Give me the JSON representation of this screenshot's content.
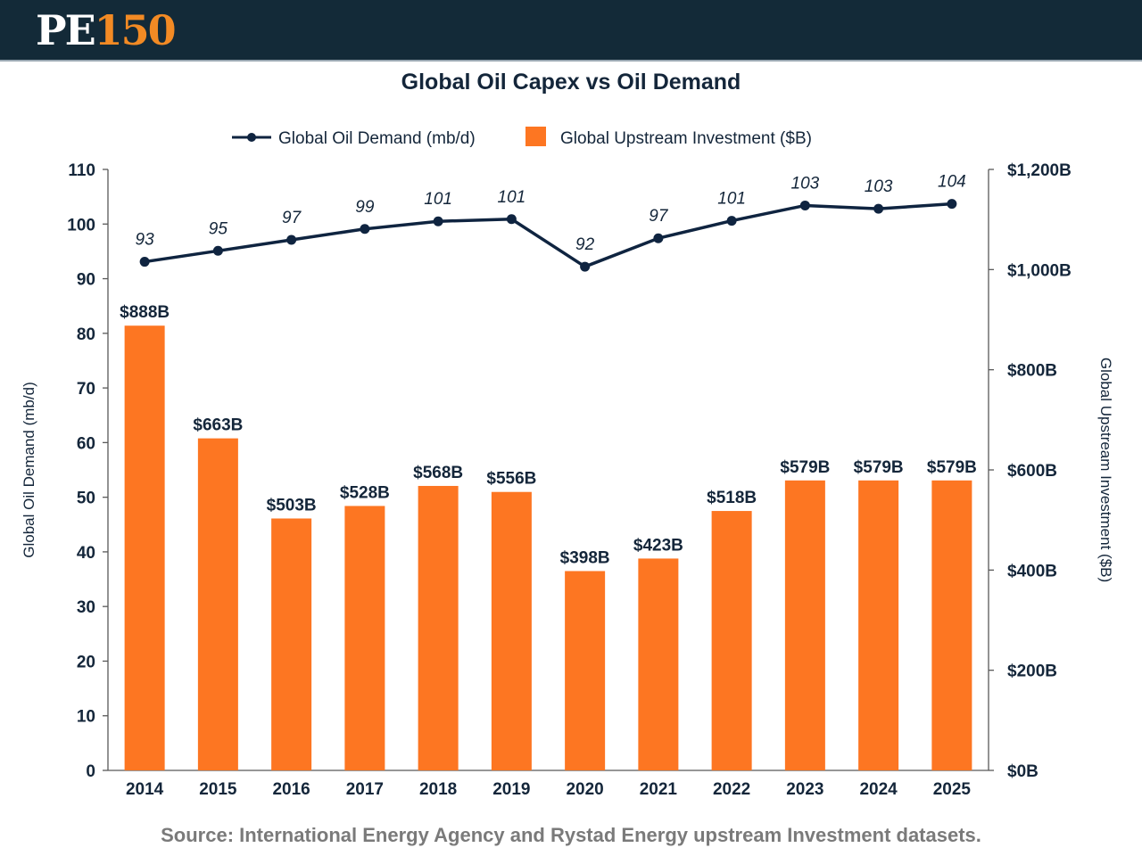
{
  "header": {
    "logo_text_primary": "PE",
    "logo_text_accent": "150"
  },
  "source_note": "Source: International Energy Agency and Rystad Energy upstream Investment datasets.",
  "colors": {
    "header_bg": "#132a38",
    "logo_accent": "#f28a24",
    "bar": "#fd7622",
    "line": "#0f2440",
    "text_dark": "#14263a",
    "source_text": "#7a7a7a"
  },
  "chart_data": {
    "type": "bar",
    "title": "Global Oil Capex vs Oil Demand",
    "categories": [
      "2014",
      "2015",
      "2016",
      "2017",
      "2018",
      "2019",
      "2020",
      "2021",
      "2022",
      "2023",
      "2024",
      "2025"
    ],
    "series": [
      {
        "name": "Global Upstream Investment ($B)",
        "type": "bar",
        "axis": "right",
        "values": [
          888,
          663,
          503,
          528,
          568,
          556,
          398,
          423,
          518,
          579,
          579,
          579
        ],
        "labels": [
          "$888B",
          "$663B",
          "$503B",
          "$528B",
          "$568B",
          "$556B",
          "$398B",
          "$423B",
          "$518B",
          "$579B",
          "$579B",
          "$579B"
        ]
      },
      {
        "name": "Global Oil Demand (mb/d)",
        "type": "line",
        "axis": "left",
        "values": [
          93.1,
          95.1,
          97.1,
          99.1,
          100.5,
          100.9,
          92.2,
          97.4,
          100.6,
          103.4,
          102.8,
          103.7
        ],
        "labels": [
          "93",
          "95",
          "97",
          "99",
          "101",
          "101",
          "92",
          "97",
          "101",
          "103",
          "103",
          "104"
        ]
      }
    ],
    "left_axis": {
      "label": "Global Oil Demand (mb/d)",
      "ylim": [
        0,
        110
      ],
      "ticks": [
        0,
        10,
        20,
        30,
        40,
        50,
        60,
        70,
        80,
        90,
        100,
        110
      ],
      "tick_labels": [
        "0",
        "10",
        "20",
        "30",
        "40",
        "50",
        "60",
        "70",
        "80",
        "90",
        "100",
        "110"
      ]
    },
    "right_axis": {
      "label": "Global Upstream Investment ($B)",
      "ylim": [
        0,
        1200
      ],
      "ticks": [
        0,
        200,
        400,
        600,
        800,
        1000,
        1200
      ],
      "tick_labels": [
        "$0B",
        "$200B",
        "$400B",
        "$600B",
        "$800B",
        "$1,000B",
        "$1,200B"
      ]
    },
    "legend": {
      "placement": "top-center",
      "entries": [
        "Global Oil Demand (mb/d)",
        "Global Upstream Investment ($B)"
      ]
    },
    "grid": false
  }
}
